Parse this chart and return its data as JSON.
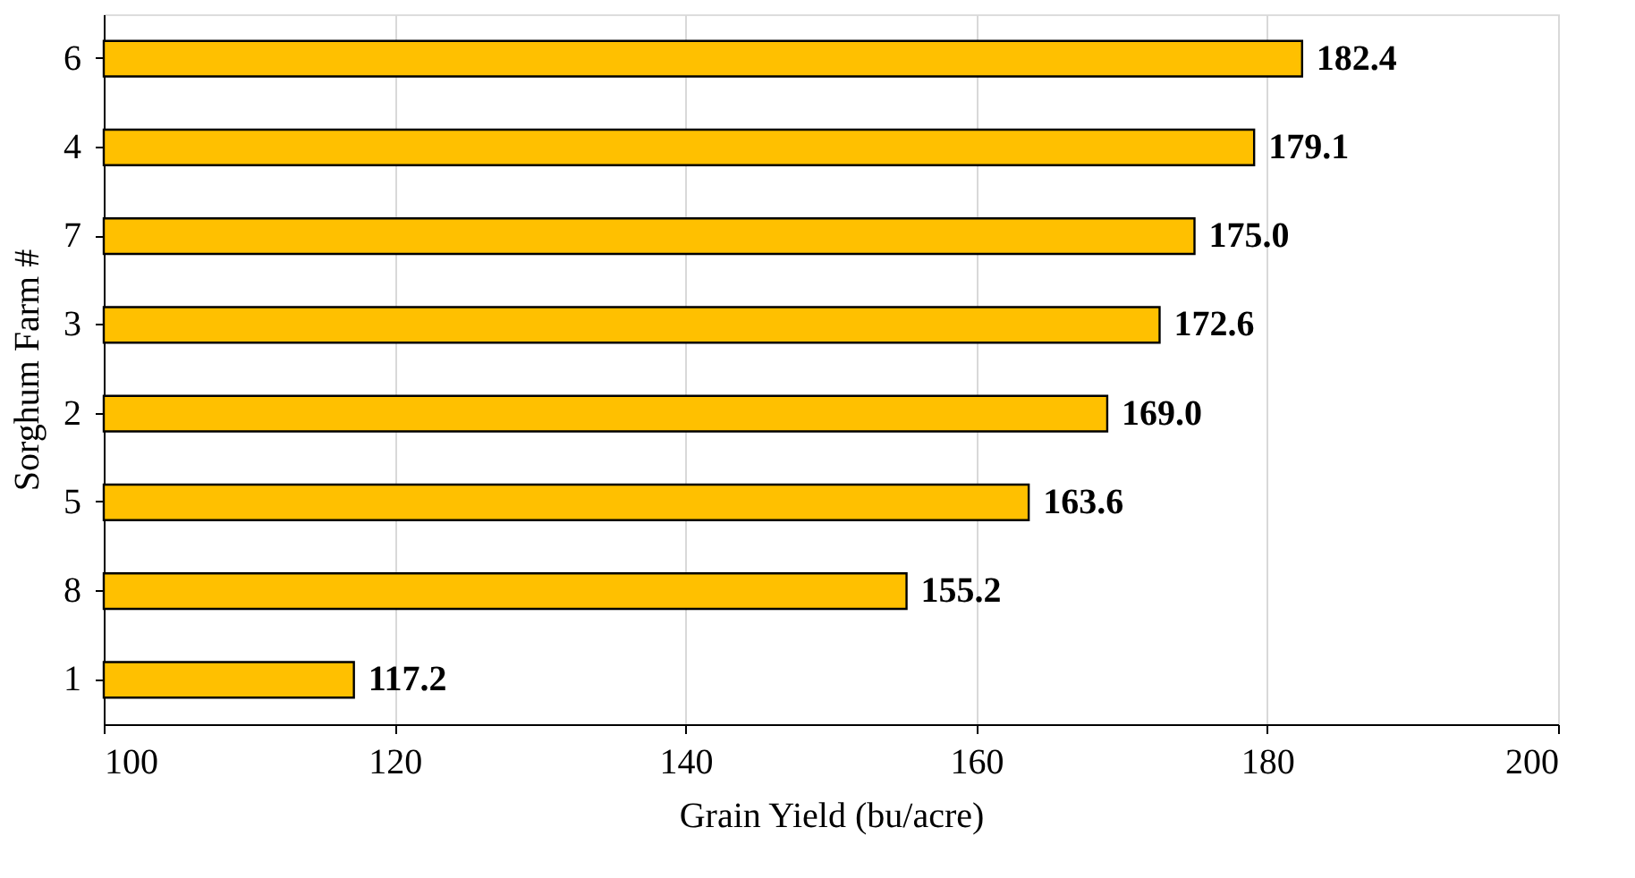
{
  "chart_data": {
    "type": "bar",
    "orientation": "horizontal",
    "xlabel": "Grain Yield (bu/acre)",
    "ylabel": "Sorghum  Farm #",
    "categories": [
      "6",
      "4",
      "7",
      "3",
      "2",
      "5",
      "8",
      "1"
    ],
    "values": [
      182.4,
      179.1,
      175.0,
      172.6,
      169.0,
      163.6,
      155.2,
      117.2
    ],
    "value_labels": [
      "182.4",
      "179.1",
      "175.0",
      "172.6",
      "169.0",
      "163.6",
      "155.2",
      "117.2"
    ],
    "color": "#ffc000",
    "xlim": [
      100,
      200
    ],
    "xticks": [
      100,
      120,
      140,
      160,
      180,
      200
    ],
    "grid": "x"
  }
}
